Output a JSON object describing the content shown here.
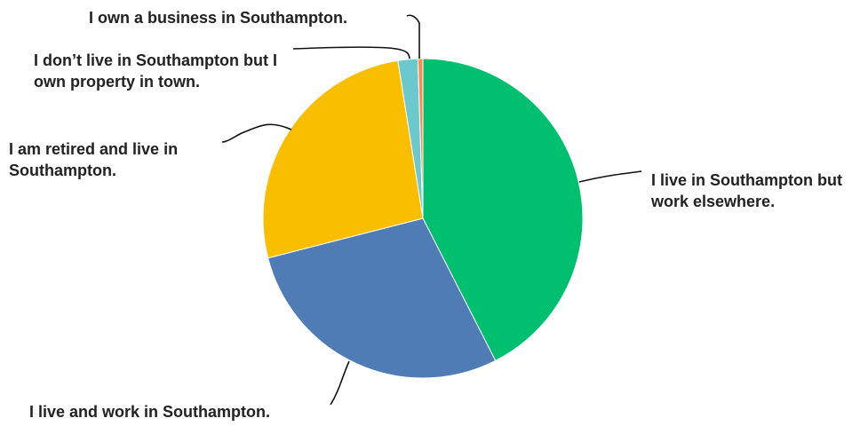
{
  "chart_data": {
    "type": "pie",
    "title": "",
    "slices": [
      {
        "label": "I live in Southampton but work elsewhere.",
        "value": 42.5,
        "color": "#00BF6F"
      },
      {
        "label": "I live and work in Southampton.",
        "value": 28.5,
        "color": "#507CB6"
      },
      {
        "label": "I am retired and live in Southampton.",
        "value": 26.5,
        "color": "#F9BE00"
      },
      {
        "label": "I don’t live in Southampton but I own property in town.",
        "value": 2.0,
        "color": "#6BC8CD"
      },
      {
        "label": "I own a business in Southampton.",
        "value": 0.5,
        "color": "#FF8B4F"
      }
    ]
  }
}
